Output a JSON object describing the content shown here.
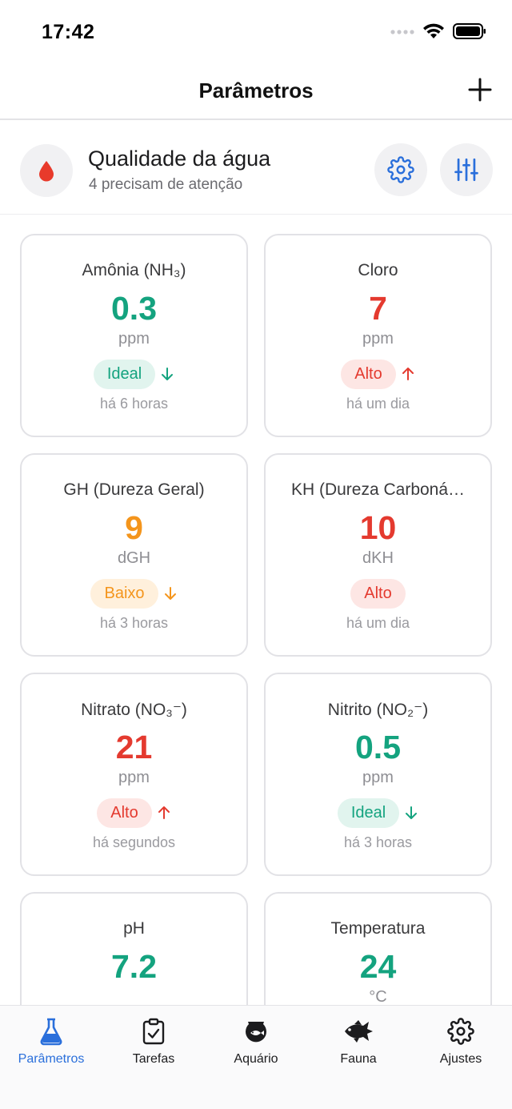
{
  "status_bar": {
    "time": "17:42"
  },
  "nav": {
    "title": "Parâmetros"
  },
  "summary": {
    "title": "Qualidade da água",
    "subtitle": "4 precisam de atenção"
  },
  "colors": {
    "green": "#14a37f",
    "red": "#e43a2f",
    "orange": "#f4951c",
    "accent": "#2a6fdb"
  },
  "cards": [
    {
      "name": "Amônia (NH₃)",
      "value": "0.3",
      "unit": "ppm",
      "status": "Ideal",
      "status_kind": "ideal",
      "trend": "down",
      "time": "há 6 horas"
    },
    {
      "name": "Cloro",
      "value": "7",
      "unit": "ppm",
      "status": "Alto",
      "status_kind": "alto",
      "trend": "up",
      "time": "há um dia"
    },
    {
      "name": "GH (Dureza Geral)",
      "value": "9",
      "unit": "dGH",
      "status": "Baixo",
      "status_kind": "baixo",
      "trend": "down",
      "time": "há 3 horas"
    },
    {
      "name": "KH (Dureza Carboná…",
      "value": "10",
      "unit": "dKH",
      "status": "Alto",
      "status_kind": "alto",
      "trend": "none",
      "time": "há um dia"
    },
    {
      "name": "Nitrato (NO₃⁻)",
      "value": "21",
      "unit": "ppm",
      "status": "Alto",
      "status_kind": "alto",
      "trend": "up",
      "time": "há segundos"
    },
    {
      "name": "Nitrito (NO₂⁻)",
      "value": "0.5",
      "unit": "ppm",
      "status": "Ideal",
      "status_kind": "ideal",
      "trend": "down",
      "time": "há 3 horas"
    },
    {
      "name": "pH",
      "value": "7.2",
      "unit": "",
      "status": "",
      "status_kind": "ideal",
      "trend": "none",
      "time": ""
    },
    {
      "name": "Temperatura",
      "value": "24",
      "unit": "°C",
      "status": "",
      "status_kind": "ideal",
      "trend": "none",
      "time": ""
    }
  ],
  "tabs": [
    {
      "label": "Parâmetros",
      "icon": "flask-icon",
      "active": true
    },
    {
      "label": "Tarefas",
      "icon": "clipboard-check-icon",
      "active": false
    },
    {
      "label": "Aquário",
      "icon": "fishbowl-icon",
      "active": false
    },
    {
      "label": "Fauna",
      "icon": "fish-icon",
      "active": false
    },
    {
      "label": "Ajustes",
      "icon": "gear-icon",
      "active": false
    }
  ]
}
